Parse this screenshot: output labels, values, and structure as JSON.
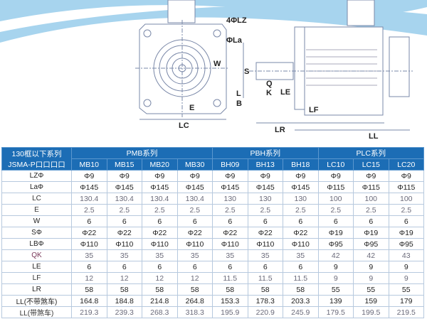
{
  "colors": {
    "header_bg": "#1c6db5",
    "wave": "#4aa3dc",
    "line": "#7a88a8"
  },
  "drawing": {
    "labels": {
      "lz": "4ΦLZ",
      "la": "ΦLa",
      "w": "W",
      "e": "E",
      "lc": "LC",
      "s": "S",
      "q": "Q",
      "k": "K",
      "l": "L",
      "b": "B",
      "le": "LE",
      "lf": "LF",
      "lr": "LR",
      "ll": "LL"
    }
  },
  "table": {
    "corner_line1": "130框以下系列",
    "corner_line2": "JSMA-P口口口口",
    "groups": [
      "PMB系列",
      "PBH系列",
      "PLC系列"
    ],
    "models": [
      "MB10",
      "MB15",
      "MB20",
      "MB30",
      "BH09",
      "BH13",
      "BH18",
      "LC10",
      "LC15",
      "LC20"
    ],
    "rows": [
      {
        "label": "LZΦ",
        "values": [
          "Φ9",
          "Φ9",
          "Φ9",
          "Φ9",
          "Φ9",
          "Φ9",
          "Φ9",
          "Φ9",
          "Φ9",
          "Φ9"
        ]
      },
      {
        "label": "LaΦ",
        "values": [
          "Φ145",
          "Φ145",
          "Φ145",
          "Φ145",
          "Φ145",
          "Φ145",
          "Φ145",
          "Φ115",
          "Φ115",
          "Φ115"
        ]
      },
      {
        "label": "LC",
        "values": [
          "130.4",
          "130.4",
          "130.4",
          "130.4",
          "130",
          "130",
          "130",
          "100",
          "100",
          "100"
        ]
      },
      {
        "label": "E",
        "values": [
          "2.5",
          "2.5",
          "2.5",
          "2.5",
          "2.5",
          "2.5",
          "2.5",
          "2.5",
          "2.5",
          "2.5"
        ]
      },
      {
        "label": "W",
        "values": [
          "6",
          "6",
          "6",
          "6",
          "6",
          "6",
          "6",
          "6",
          "6",
          "6"
        ]
      },
      {
        "label": "SΦ",
        "values": [
          "Φ22",
          "Φ22",
          "Φ22",
          "Φ22",
          "Φ22",
          "Φ22",
          "Φ22",
          "Φ19",
          "Φ19",
          "Φ19"
        ]
      },
      {
        "label": "LBΦ",
        "values": [
          "Φ110",
          "Φ110",
          "Φ110",
          "Φ110",
          "Φ110",
          "Φ110",
          "Φ110",
          "Φ95",
          "Φ95",
          "Φ95"
        ]
      },
      {
        "label": "QK",
        "values": [
          "35",
          "35",
          "35",
          "35",
          "35",
          "35",
          "35",
          "42",
          "42",
          "43"
        ]
      },
      {
        "label": "LE",
        "values": [
          "6",
          "6",
          "6",
          "6",
          "6",
          "6",
          "6",
          "9",
          "9",
          "9"
        ]
      },
      {
        "label": "LF",
        "values": [
          "12",
          "12",
          "12",
          "12",
          "11.5",
          "11.5",
          "11.5",
          "9",
          "9",
          "9"
        ]
      },
      {
        "label": "LR",
        "values": [
          "58",
          "58",
          "58",
          "58",
          "58",
          "58",
          "58",
          "55",
          "55",
          "55"
        ]
      },
      {
        "label": "LL(不带煞车)",
        "values": [
          "164.8",
          "184.8",
          "214.8",
          "264.8",
          "153.3",
          "178.3",
          "203.3",
          "139",
          "159",
          "179"
        ]
      },
      {
        "label": "LL(带煞车)",
        "values": [
          "219.3",
          "239.3",
          "268.3",
          "318.3",
          "195.9",
          "220.9",
          "245.9",
          "179.5",
          "199.5",
          "219.5"
        ]
      }
    ]
  }
}
